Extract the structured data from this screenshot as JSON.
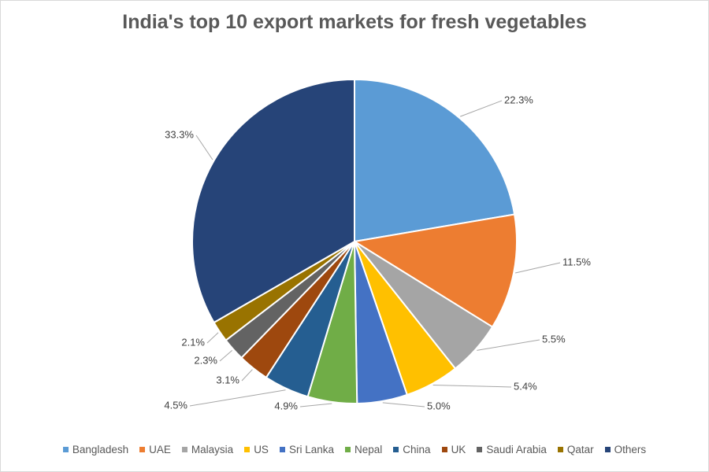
{
  "chart_data": {
    "type": "pie",
    "title": "India's top 10 export markets for fresh vegetables",
    "slices": [
      {
        "name": "Bangladesh",
        "value": 22.3,
        "label": "22.3%",
        "color": "#5B9BD5"
      },
      {
        "name": "UAE",
        "value": 11.5,
        "label": "11.5%",
        "color": "#ED7D31"
      },
      {
        "name": "Malaysia",
        "value": 5.5,
        "label": "5.5%",
        "color": "#A5A5A5"
      },
      {
        "name": "US",
        "value": 5.4,
        "label": "5.4%",
        "color": "#FFC000"
      },
      {
        "name": "Sri Lanka",
        "value": 5.0,
        "label": "5.0%",
        "color": "#4472C4"
      },
      {
        "name": "Nepal",
        "value": 4.9,
        "label": "4.9%",
        "color": "#70AD47"
      },
      {
        "name": "China",
        "value": 4.5,
        "label": "4.5%",
        "color": "#255E91"
      },
      {
        "name": "UK",
        "value": 3.1,
        "label": "3.1%",
        "color": "#9E480E"
      },
      {
        "name": "Saudi Arabia",
        "value": 2.3,
        "label": "2.3%",
        "color": "#636363"
      },
      {
        "name": "Qatar",
        "value": 2.1,
        "label": "2.1%",
        "color": "#997300"
      },
      {
        "name": "Others",
        "value": 33.3,
        "label": "33.3%",
        "color": "#264478"
      }
    ],
    "legend_position": "bottom"
  }
}
